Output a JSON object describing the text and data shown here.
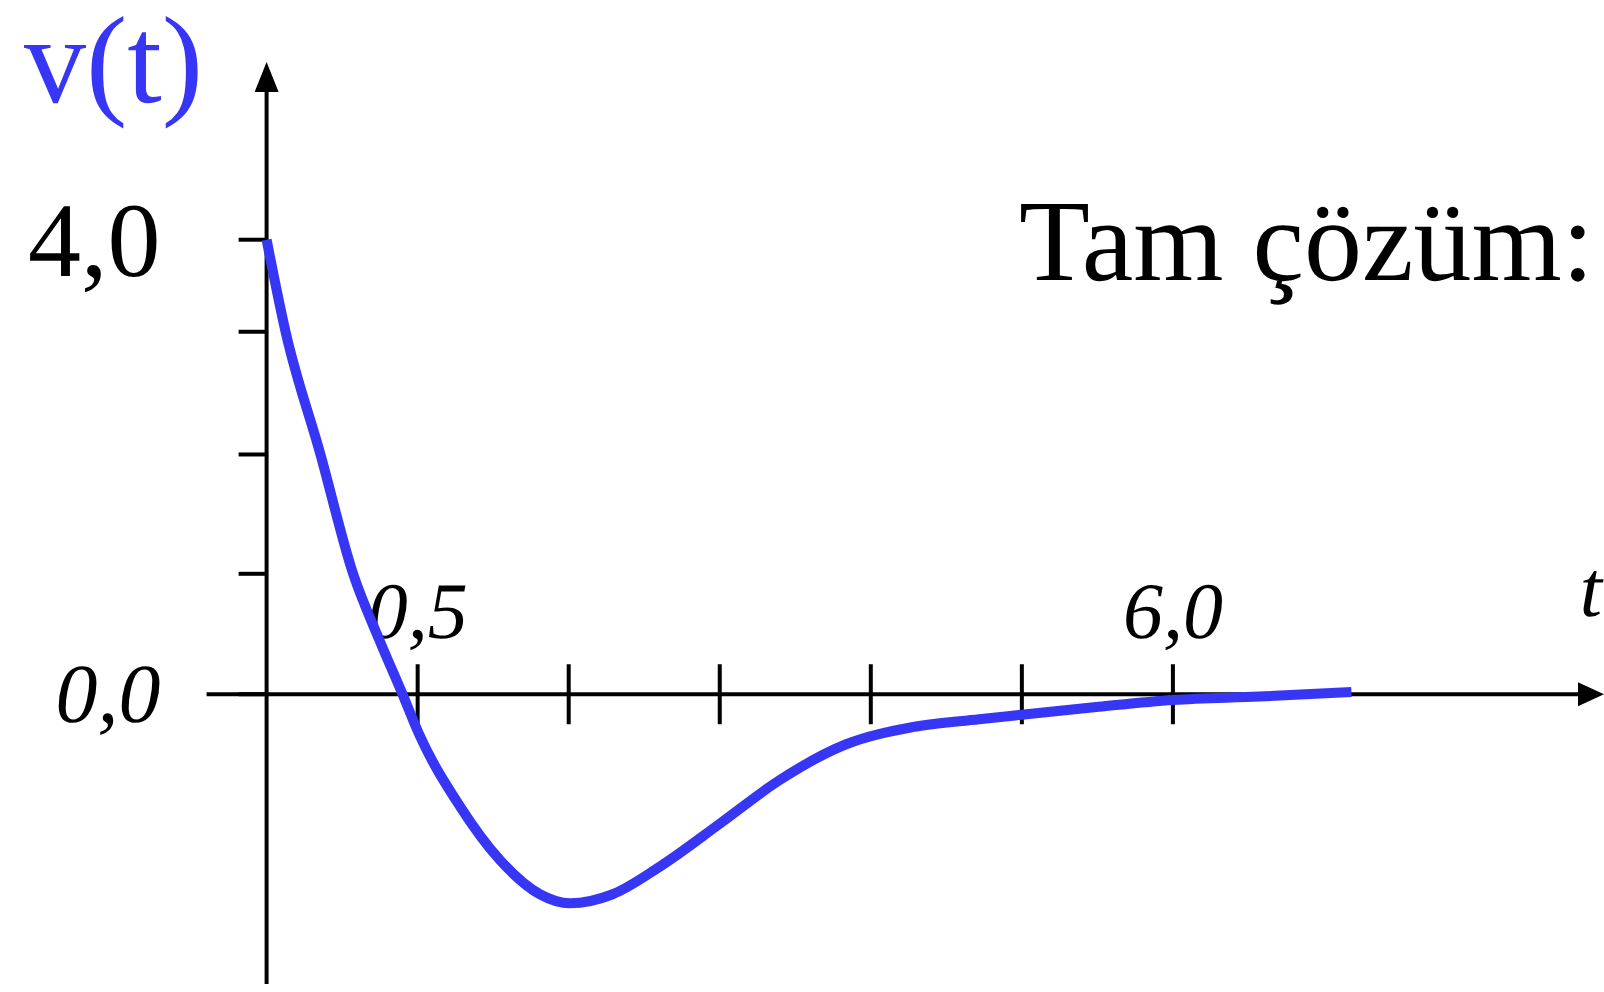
{
  "chart_data": {
    "type": "line",
    "title": "Tam çözüm:",
    "xlabel": "t",
    "ylabel": "v(t)",
    "x": [
      -0.6,
      -0.46,
      -0.21,
      0.03,
      0.22,
      0.39,
      0.51,
      0.81,
      1.1,
      1.39,
      1.61,
      1.92,
      2.26,
      2.7,
      3.13,
      3.62,
      4.1,
      4.59,
      4.9,
      5.46,
      6.0,
      6.63,
      7.3
    ],
    "series": [
      {
        "color": "#3636f4",
        "values": [
          4.0,
          3.18,
          2.12,
          1.06,
          0.48,
          0.0,
          -0.35,
          -0.99,
          -1.46,
          -1.76,
          -1.84,
          -1.76,
          -1.52,
          -1.14,
          -0.76,
          -0.44,
          -0.29,
          -0.22,
          -0.18,
          -0.11,
          -0.05,
          -0.02,
          0.02
        ]
      }
    ],
    "xlim": [
      -0.6,
      8.95
    ],
    "ylim": [
      -2.55,
      5.3
    ],
    "xticks": [
      {
        "value": 0.5,
        "label": "0,5"
      },
      {
        "value": 1.6,
        "label": null
      },
      {
        "value": 2.7,
        "label": null
      },
      {
        "value": 3.8,
        "label": null
      },
      {
        "value": 4.9,
        "label": null
      },
      {
        "value": 6.0,
        "label": "6,0"
      }
    ],
    "yticks": [
      {
        "value": 0,
        "label": "0,0"
      },
      {
        "value": 1.06,
        "label": null
      },
      {
        "value": 2.11,
        "label": null
      },
      {
        "value": 3.19,
        "label": null
      },
      {
        "value": 4.0,
        "label": "4,0"
      }
    ],
    "line_style": "solid"
  }
}
